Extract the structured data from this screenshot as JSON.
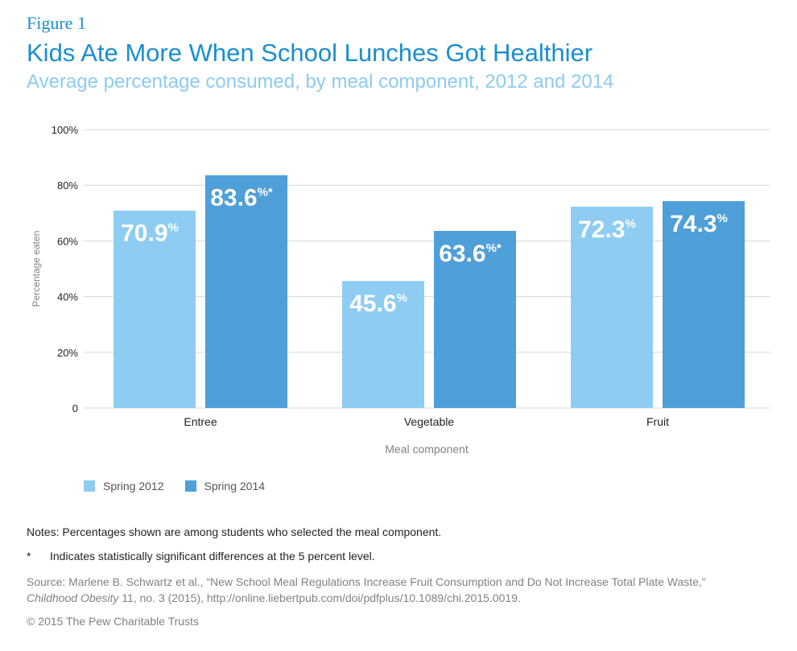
{
  "header": {
    "figure_label": "Figure 1",
    "title": "Kids Ate More When School Lunches Got Healthier",
    "subtitle": "Average percentage consumed, by meal component, 2012 and 2014"
  },
  "colors": {
    "accent": "#1b8ed0",
    "subtitle": "#8ccbf0",
    "series_2012": "#8ecdf1",
    "series_2014": "#4f9fd9",
    "gridline": "#d7d7d7",
    "label_text": "#ffffff"
  },
  "chart_data": {
    "type": "bar",
    "title": "Kids Ate More When School Lunches Got Healthier",
    "subtitle": "Average percentage consumed, by meal component, 2012 and 2014",
    "xlabel": "Meal component",
    "ylabel": "Percentage eaten",
    "ylim": [
      0,
      100
    ],
    "y_ticks": [
      0,
      20,
      40,
      60,
      80,
      100
    ],
    "y_tick_labels": [
      "0",
      "20%",
      "40%",
      "60%",
      "80%",
      "100%"
    ],
    "grid": true,
    "legend_position": "bottom-left",
    "categories": [
      "Entree",
      "Vegetable",
      "Fruit"
    ],
    "series": [
      {
        "name": "Spring 2012",
        "values": [
          70.9,
          45.6,
          72.3
        ],
        "labels": [
          "70.9",
          "45.6",
          "72.3"
        ],
        "label_suffix": [
          "%",
          "%",
          "%"
        ]
      },
      {
        "name": "Spring 2014",
        "values": [
          83.6,
          63.6,
          74.3
        ],
        "labels": [
          "83.6",
          "63.6",
          "74.3"
        ],
        "label_suffix": [
          "%*",
          "%*",
          "%"
        ]
      }
    ]
  },
  "notes": {
    "note": "Notes: Percentages shown are among students who selected the meal component.",
    "asterisk_mark": "*",
    "asterisk_text": "Indicates statistically significant differences at the 5 percent level.",
    "source_prefix": "Source: Marlene B. Schwartz et al., “New School Meal Regulations Increase Fruit Consumption and Do Not Increase Total Plate Waste,”",
    "source_journal": "Childhood Obesity",
    "source_suffix": " 11, no. 3 (2015), http://online.liebertpub.com/doi/pdfplus/10.1089/chi.2015.0019.",
    "copyright": "© 2015 The Pew Charitable Trusts"
  }
}
